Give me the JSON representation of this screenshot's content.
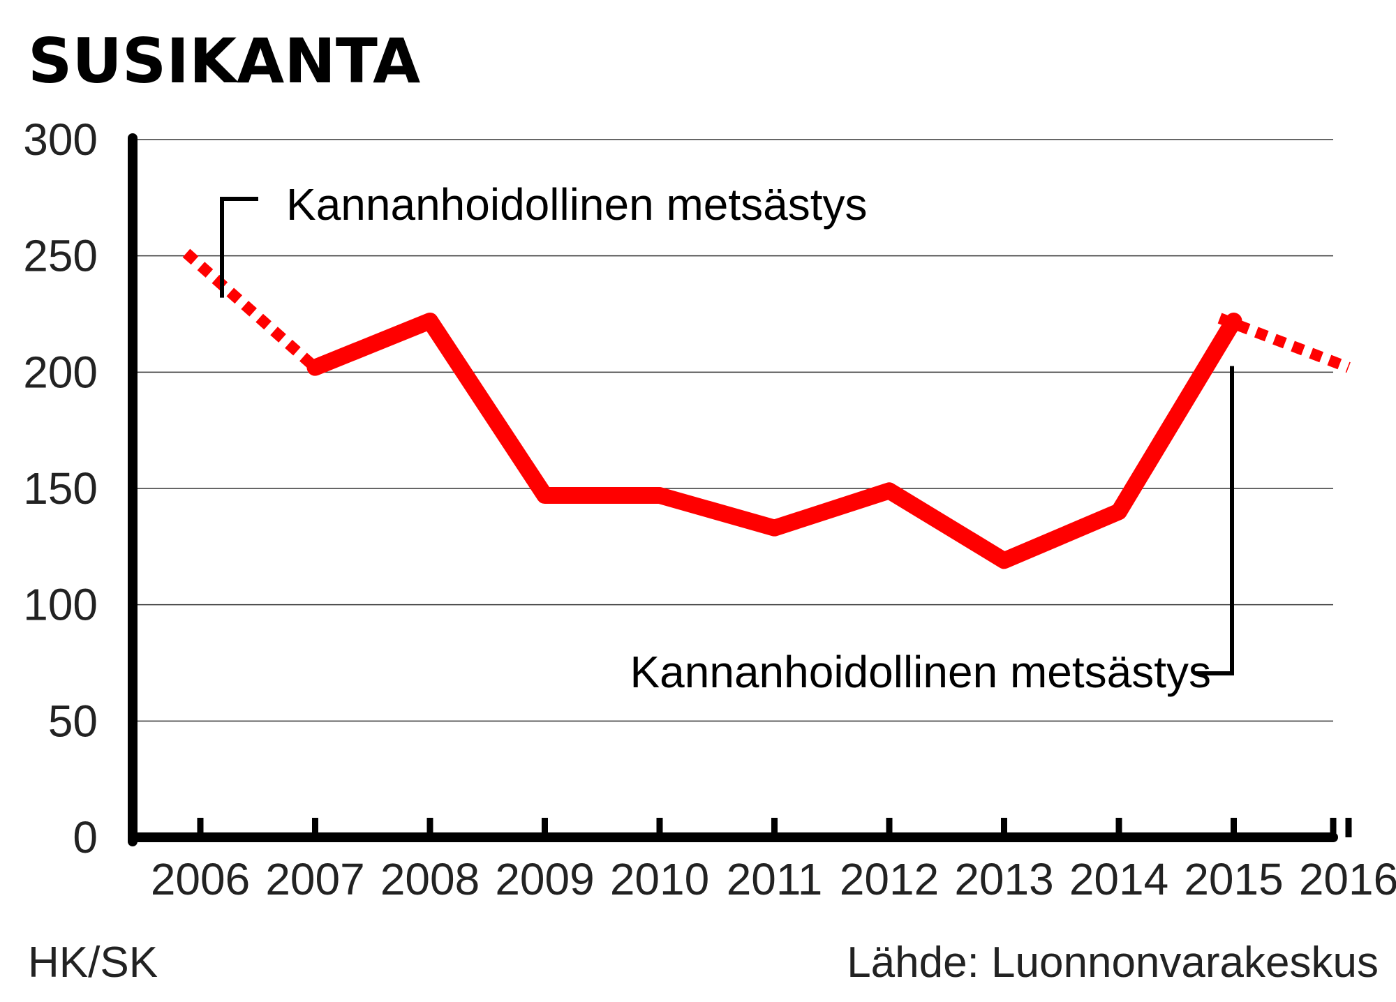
{
  "chart_data": {
    "type": "line",
    "title": "SUSIKANTA",
    "x": [
      "2006",
      "2007",
      "2008",
      "2009",
      "2010",
      "2011",
      "2012",
      "2013",
      "2014",
      "2015",
      "2016"
    ],
    "series": [
      {
        "values": [
          250,
          202,
          222,
          147,
          147,
          133,
          149,
          119,
          140,
          222,
          202
        ],
        "color": "#ff0000",
        "dashed_segments": [
          [
            0,
            1
          ],
          [
            9,
            10
          ]
        ]
      }
    ],
    "ylim": [
      0,
      300
    ],
    "yticks": [
      0,
      50,
      100,
      150,
      200,
      250,
      300
    ],
    "grid": true,
    "annotations": [
      {
        "text": "Kannanhoidollinen metsästys",
        "period": [
          "2006",
          "2007"
        ]
      },
      {
        "text": "Kannanhoidollinen metsästys",
        "period": [
          "2015",
          "2016"
        ]
      }
    ]
  },
  "footer": {
    "credit": "HK/SK",
    "source": "Lähde: Luonnonvarakeskus"
  }
}
